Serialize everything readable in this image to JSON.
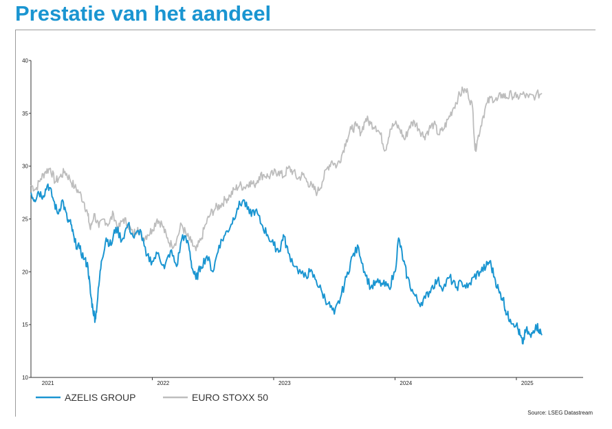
{
  "page": {
    "title": "Prestatie van het aandeel"
  },
  "chart_data": {
    "type": "line",
    "title": "",
    "xlabel": "",
    "ylabel": "",
    "ylim": [
      10,
      40
    ],
    "yticks": [
      10,
      15,
      20,
      25,
      30,
      35,
      40
    ],
    "xlim": [
      2021.0,
      2025.55
    ],
    "year_labels": [
      "2021",
      "2022",
      "2023",
      "2024",
      "2025"
    ],
    "grid": false,
    "legend_position": "bottom-left",
    "source": "Source: LSEG Datastream",
    "series": [
      {
        "name": "AZELIS GROUP",
        "color": "#1a95d1",
        "points": [
          [
            2021.0,
            27.5
          ],
          [
            2021.03,
            26.8
          ],
          [
            2021.06,
            27.6
          ],
          [
            2021.1,
            27.2
          ],
          [
            2021.14,
            28.3
          ],
          [
            2021.18,
            27.0
          ],
          [
            2021.22,
            25.5
          ],
          [
            2021.26,
            26.8
          ],
          [
            2021.3,
            24.9
          ],
          [
            2021.33,
            24.5
          ],
          [
            2021.36,
            22.8
          ],
          [
            2021.4,
            22.2
          ],
          [
            2021.44,
            21.2
          ],
          [
            2021.47,
            20.5
          ],
          [
            2021.49,
            18.0
          ],
          [
            2021.51,
            16.5
          ],
          [
            2021.53,
            15.5
          ],
          [
            2021.55,
            17.5
          ],
          [
            2021.58,
            21.0
          ],
          [
            2021.62,
            23.2
          ],
          [
            2021.66,
            22.5
          ],
          [
            2021.7,
            24.2
          ],
          [
            2021.75,
            23.0
          ],
          [
            2021.8,
            24.5
          ],
          [
            2021.85,
            23.2
          ],
          [
            2021.9,
            24.0
          ],
          [
            2021.95,
            21.5
          ],
          [
            2022.0,
            21.0
          ],
          [
            2022.05,
            21.8
          ],
          [
            2022.1,
            20.3
          ],
          [
            2022.15,
            22.0
          ],
          [
            2022.2,
            20.5
          ],
          [
            2022.25,
            23.5
          ],
          [
            2022.3,
            22.5
          ],
          [
            2022.33,
            20.3
          ],
          [
            2022.36,
            19.3
          ],
          [
            2022.4,
            20.5
          ],
          [
            2022.45,
            21.5
          ],
          [
            2022.5,
            20.0
          ],
          [
            2022.55,
            22.5
          ],
          [
            2022.6,
            23.5
          ],
          [
            2022.65,
            24.5
          ],
          [
            2022.7,
            26.0
          ],
          [
            2022.75,
            26.8
          ],
          [
            2022.8,
            25.5
          ],
          [
            2022.85,
            25.8
          ],
          [
            2022.9,
            24.5
          ],
          [
            2022.95,
            23.5
          ],
          [
            2023.0,
            22.5
          ],
          [
            2023.05,
            22.0
          ],
          [
            2023.08,
            23.5
          ],
          [
            2023.12,
            21.8
          ],
          [
            2023.18,
            20.5
          ],
          [
            2023.25,
            19.5
          ],
          [
            2023.3,
            20.0
          ],
          [
            2023.35,
            19.2
          ],
          [
            2023.4,
            18.0
          ],
          [
            2023.45,
            17.0
          ],
          [
            2023.5,
            16.0
          ],
          [
            2023.55,
            17.5
          ],
          [
            2023.6,
            19.5
          ],
          [
            2023.65,
            21.5
          ],
          [
            2023.7,
            22.3
          ],
          [
            2023.75,
            20.0
          ],
          [
            2023.8,
            18.5
          ],
          [
            2023.85,
            19.0
          ],
          [
            2023.9,
            18.8
          ],
          [
            2023.95,
            18.5
          ],
          [
            2024.0,
            20.0
          ],
          [
            2024.03,
            23.2
          ],
          [
            2024.07,
            21.0
          ],
          [
            2024.1,
            19.5
          ],
          [
            2024.15,
            18.0
          ],
          [
            2024.2,
            17.0
          ],
          [
            2024.25,
            17.5
          ],
          [
            2024.3,
            18.5
          ],
          [
            2024.35,
            19.2
          ],
          [
            2024.4,
            18.5
          ],
          [
            2024.45,
            19.5
          ],
          [
            2024.5,
            18.5
          ],
          [
            2024.55,
            19.0
          ],
          [
            2024.6,
            18.5
          ],
          [
            2024.65,
            19.5
          ],
          [
            2024.7,
            20.0
          ],
          [
            2024.75,
            20.5
          ],
          [
            2024.78,
            21.0
          ],
          [
            2024.82,
            19.5
          ],
          [
            2024.86,
            18.0
          ],
          [
            2024.89,
            17.5
          ],
          [
            2024.92,
            16.0
          ],
          [
            2024.95,
            15.5
          ],
          [
            2025.0,
            15.0
          ],
          [
            2025.03,
            14.0
          ],
          [
            2025.05,
            13.2
          ],
          [
            2025.08,
            14.5
          ],
          [
            2025.12,
            13.8
          ],
          [
            2025.16,
            15.0
          ],
          [
            2025.19,
            14.5
          ],
          [
            2025.21,
            14.0
          ]
        ]
      },
      {
        "name": "EURO STOXX 50",
        "color": "#bdbdbd",
        "points": [
          [
            2021.0,
            28.2
          ],
          [
            2021.04,
            27.8
          ],
          [
            2021.08,
            28.8
          ],
          [
            2021.12,
            29.5
          ],
          [
            2021.16,
            29.8
          ],
          [
            2021.2,
            28.5
          ],
          [
            2021.24,
            29.0
          ],
          [
            2021.28,
            29.5
          ],
          [
            2021.32,
            28.8
          ],
          [
            2021.36,
            28.0
          ],
          [
            2021.4,
            27.5
          ],
          [
            2021.44,
            26.5
          ],
          [
            2021.47,
            25.3
          ],
          [
            2021.49,
            24.0
          ],
          [
            2021.52,
            25.5
          ],
          [
            2021.56,
            24.2
          ],
          [
            2021.6,
            25.0
          ],
          [
            2021.64,
            24.5
          ],
          [
            2021.68,
            25.5
          ],
          [
            2021.72,
            24.0
          ],
          [
            2021.76,
            25.0
          ],
          [
            2021.8,
            24.5
          ],
          [
            2021.84,
            23.5
          ],
          [
            2021.88,
            24.2
          ],
          [
            2021.92,
            23.2
          ],
          [
            2021.96,
            23.5
          ],
          [
            2022.0,
            24.0
          ],
          [
            2022.04,
            25.0
          ],
          [
            2022.08,
            24.5
          ],
          [
            2022.12,
            23.2
          ],
          [
            2022.16,
            22.5
          ],
          [
            2022.2,
            23.0
          ],
          [
            2022.24,
            24.5
          ],
          [
            2022.28,
            23.5
          ],
          [
            2022.32,
            22.8
          ],
          [
            2022.36,
            22.0
          ],
          [
            2022.4,
            23.0
          ],
          [
            2022.44,
            24.5
          ],
          [
            2022.48,
            25.5
          ],
          [
            2022.52,
            26.0
          ],
          [
            2022.56,
            26.3
          ],
          [
            2022.6,
            26.8
          ],
          [
            2022.64,
            27.2
          ],
          [
            2022.68,
            27.8
          ],
          [
            2022.72,
            28.2
          ],
          [
            2022.76,
            28.0
          ],
          [
            2022.8,
            28.5
          ],
          [
            2022.84,
            28.2
          ],
          [
            2022.88,
            29.0
          ],
          [
            2022.92,
            29.2
          ],
          [
            2022.96,
            29.0
          ],
          [
            2023.0,
            29.3
          ],
          [
            2023.04,
            29.5
          ],
          [
            2023.08,
            29.0
          ],
          [
            2023.12,
            29.8
          ],
          [
            2023.16,
            29.5
          ],
          [
            2023.2,
            28.8
          ],
          [
            2023.24,
            29.2
          ],
          [
            2023.28,
            28.5
          ],
          [
            2023.32,
            28.0
          ],
          [
            2023.36,
            27.5
          ],
          [
            2023.4,
            28.5
          ],
          [
            2023.44,
            29.8
          ],
          [
            2023.48,
            30.5
          ],
          [
            2023.52,
            30.0
          ],
          [
            2023.56,
            31.0
          ],
          [
            2023.6,
            32.5
          ],
          [
            2023.64,
            33.5
          ],
          [
            2023.68,
            33.8
          ],
          [
            2023.72,
            33.2
          ],
          [
            2023.76,
            34.5
          ],
          [
            2023.8,
            34.0
          ],
          [
            2023.84,
            33.8
          ],
          [
            2023.88,
            33.0
          ],
          [
            2023.92,
            31.5
          ],
          [
            2023.96,
            33.5
          ],
          [
            2024.0,
            34.0
          ],
          [
            2024.04,
            33.5
          ],
          [
            2024.08,
            32.5
          ],
          [
            2024.12,
            33.8
          ],
          [
            2024.16,
            34.2
          ],
          [
            2024.2,
            33.5
          ],
          [
            2024.24,
            32.8
          ],
          [
            2024.28,
            33.5
          ],
          [
            2024.32,
            34.0
          ],
          [
            2024.36,
            33.0
          ],
          [
            2024.4,
            33.5
          ],
          [
            2024.44,
            34.5
          ],
          [
            2024.48,
            35.5
          ],
          [
            2024.52,
            36.5
          ],
          [
            2024.56,
            37.2
          ],
          [
            2024.6,
            37.0
          ],
          [
            2024.64,
            35.5
          ],
          [
            2024.66,
            31.5
          ],
          [
            2024.68,
            32.5
          ],
          [
            2024.72,
            34.5
          ],
          [
            2024.76,
            36.0
          ],
          [
            2024.8,
            36.5
          ],
          [
            2024.84,
            36.2
          ],
          [
            2024.88,
            36.8
          ],
          [
            2024.92,
            36.5
          ],
          [
            2024.96,
            36.8
          ],
          [
            2025.0,
            36.5
          ],
          [
            2025.05,
            36.8
          ],
          [
            2025.1,
            36.5
          ],
          [
            2025.16,
            36.7
          ],
          [
            2025.21,
            36.9
          ]
        ]
      }
    ]
  }
}
